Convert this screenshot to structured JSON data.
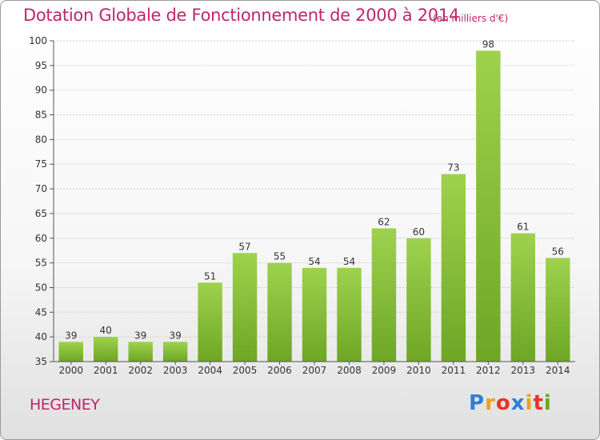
{
  "chart_data": {
    "type": "bar",
    "title": "Dotation Globale de Fonctionnement de 2000 à 2014",
    "subtitle": "(en milliers d'€)",
    "categories": [
      "2000",
      "2001",
      "2002",
      "2003",
      "2004",
      "2005",
      "2006",
      "2007",
      "2008",
      "2009",
      "2010",
      "2011",
      "2012",
      "2013",
      "2014"
    ],
    "values": [
      39,
      40,
      39,
      39,
      51,
      57,
      55,
      54,
      54,
      62,
      60,
      73,
      98,
      61,
      56
    ],
    "ylim": [
      35,
      100
    ],
    "yticks": [
      35,
      40,
      45,
      50,
      55,
      60,
      65,
      70,
      75,
      80,
      85,
      90,
      95,
      100
    ],
    "grid": true,
    "bar_color_top": "#9ed24e",
    "bar_color_bottom": "#6ea625"
  },
  "footer": {
    "commune": "HEGENEY",
    "logo_letters": [
      "P",
      "r",
      "o",
      "x",
      "i",
      "t",
      "i"
    ],
    "logo_colors": [
      "#2f7fd4",
      "#f0a020",
      "#e8332a",
      "#2f7fd4",
      "#f0a020",
      "#e8332a",
      "#6aa61c"
    ]
  }
}
